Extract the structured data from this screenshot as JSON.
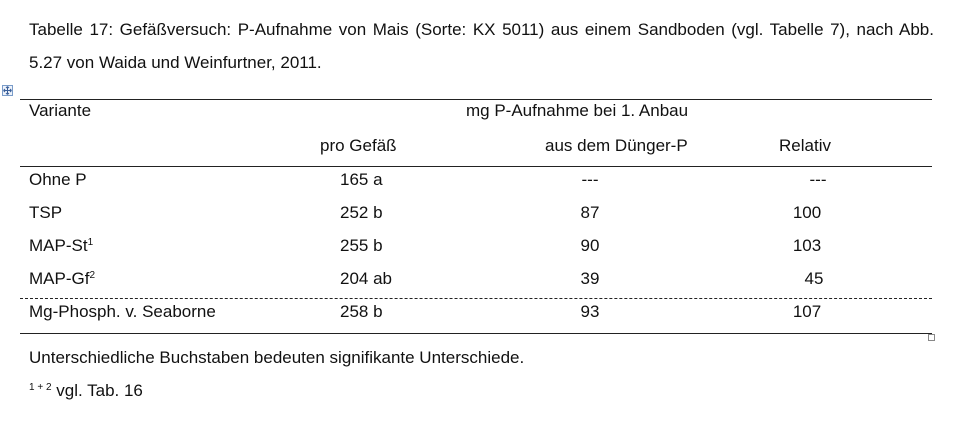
{
  "caption": "Tabelle 17: Gefäßversuch: P-Aufnahme von Mais (Sorte: KX 5011) aus einem Sandboden (vgl. Tabelle 7), nach Abb. 5.27 von Waida und Weinfurtner, 2011.",
  "table": {
    "header": {
      "variant": "Variante",
      "group": "mg P-Aufnahme bei 1. Anbau",
      "pro_gefaess": "pro Gefäß",
      "aus_duenger": "aus dem Dünger-P",
      "relativ": "Relativ"
    },
    "rows": [
      {
        "variant": "Ohne P",
        "sup": "",
        "pro_gefaess": "165 a",
        "aus_duenger": "---",
        "relativ": "---"
      },
      {
        "variant": "TSP",
        "sup": "",
        "pro_gefaess": "252 b",
        "aus_duenger": "87",
        "relativ": "100"
      },
      {
        "variant": "MAP-St",
        "sup": "1",
        "pro_gefaess": "255 b",
        "aus_duenger": "90",
        "relativ": "103"
      },
      {
        "variant": "MAP-Gf",
        "sup": "2",
        "pro_gefaess": "204 ab",
        "aus_duenger": "39",
        "relativ": "45"
      },
      {
        "variant": "Mg-Phosph. v. Seaborne",
        "sup": "",
        "pro_gefaess": "258 b",
        "aus_duenger": "93",
        "relativ": "107"
      }
    ]
  },
  "footnotes": {
    "note1": "Unterschiedliche Buchstaben bedeuten signifikante Unterschiede.",
    "note2_sup": "1 + 2",
    "note2_text": " vgl. Tab. 16"
  }
}
